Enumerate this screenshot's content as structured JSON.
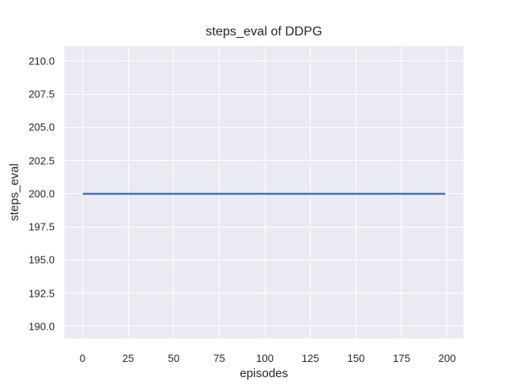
{
  "chart_data": {
    "type": "line",
    "title": "steps_eval of DDPG",
    "xlabel": "episodes",
    "ylabel": "steps_eval",
    "x_tick_values": [
      0,
      25,
      50,
      75,
      100,
      125,
      150,
      175,
      200
    ],
    "x_tick_labels": [
      "0",
      "25",
      "50",
      "75",
      "100",
      "125",
      "150",
      "175",
      "200"
    ],
    "y_tick_values": [
      190.0,
      192.5,
      195.0,
      197.5,
      200.0,
      202.5,
      205.0,
      207.5,
      210.0
    ],
    "y_tick_labels": [
      "190.0",
      "192.5",
      "195.0",
      "197.5",
      "200.0",
      "202.5",
      "205.0",
      "207.5",
      "210.0"
    ],
    "xlim": [
      -10,
      209
    ],
    "ylim": [
      189.09,
      211.15
    ],
    "grid": true,
    "legend": "none",
    "plot_background_color": "#EAEAF2",
    "gridline_color": "#FFFFFF",
    "text_color": "#262626",
    "series": [
      {
        "name": "DDPG",
        "color": "#4C72B0",
        "line_width": 2.5,
        "x": [
          0,
          199
        ],
        "y": [
          200,
          200
        ]
      }
    ]
  }
}
